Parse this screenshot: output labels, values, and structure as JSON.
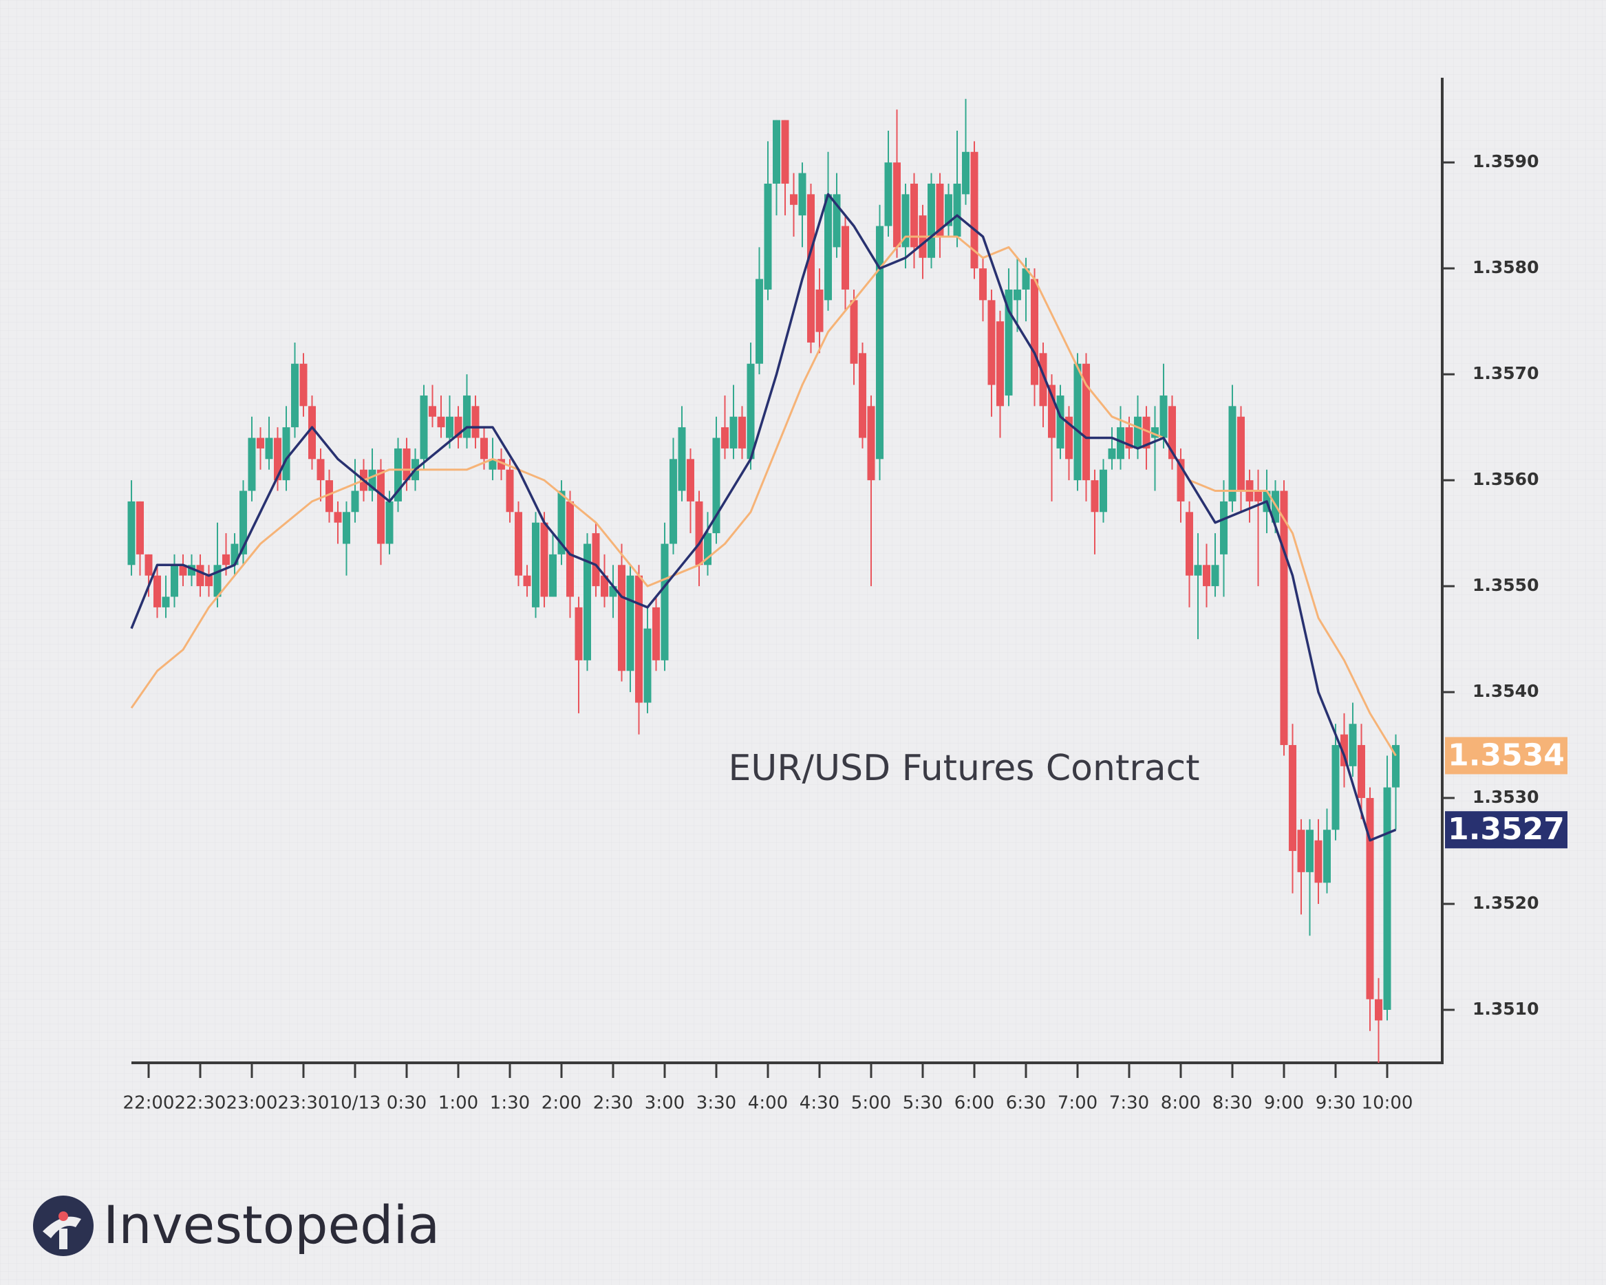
{
  "chart_data": {
    "type": "candlestick",
    "title": "EUR/USD Futures Contract",
    "up_color": "#33a98f",
    "down_color": "#e9545b",
    "x": [
      -10,
      -5,
      0,
      5,
      10,
      15,
      20,
      25,
      30,
      35,
      40,
      45,
      50,
      55,
      60,
      65,
      70,
      75,
      80,
      85,
      90,
      95,
      100,
      105,
      110,
      115,
      120,
      125,
      130,
      135,
      140,
      145,
      150,
      155,
      160,
      165,
      170,
      175,
      180,
      185,
      190,
      195,
      200,
      205,
      210,
      215,
      220,
      225,
      230,
      235,
      240,
      245,
      250,
      255,
      260,
      265,
      270,
      275,
      280,
      285,
      290,
      295,
      300,
      305,
      310,
      315,
      320,
      325,
      330,
      335,
      340,
      345,
      350,
      355,
      360,
      365,
      370,
      375,
      380,
      385,
      390,
      395,
      400,
      405,
      410,
      415,
      420,
      425,
      430,
      435,
      440,
      445,
      450,
      455,
      460,
      465,
      470,
      475,
      480,
      485,
      490,
      495,
      500,
      505,
      510,
      515,
      520,
      525,
      530,
      535,
      540,
      545,
      550,
      555,
      560,
      565,
      570,
      575,
      580,
      585,
      590,
      595,
      600,
      605,
      610,
      615,
      620,
      625,
      630,
      635,
      640,
      645,
      650,
      655,
      660,
      665,
      670,
      675,
      680,
      685,
      690,
      695,
      700,
      705,
      710,
      715,
      720,
      725
    ],
    "open": [
      1.3552,
      1.3558,
      1.3553,
      1.3551,
      1.3548,
      1.3549,
      1.3552,
      1.3551,
      1.3552,
      1.3551,
      1.3549,
      1.3553,
      1.3552,
      1.3553,
      1.3559,
      1.3564,
      1.3562,
      1.3564,
      1.356,
      1.3565,
      1.3571,
      1.3567,
      1.3562,
      1.356,
      1.3557,
      1.3554,
      1.3557,
      1.3561,
      1.3559,
      1.3561,
      1.3554,
      1.3558,
      1.3563,
      1.356,
      1.3562,
      1.3567,
      1.3566,
      1.3564,
      1.3566,
      1.3564,
      1.3567,
      1.3564,
      1.3561,
      1.3562,
      1.3561,
      1.3557,
      1.3551,
      1.3548,
      1.3556,
      1.3549,
      1.3553,
      1.3558,
      1.3548,
      1.3543,
      1.3555,
      1.3551,
      1.3549,
      1.3552,
      1.3542,
      1.3551,
      1.3539,
      1.3548,
      1.3543,
      1.3554,
      1.3559,
      1.3562,
      1.3558,
      1.3552,
      1.3555,
      1.3565,
      1.3563,
      1.3566,
      1.3562,
      1.3571,
      1.3578,
      1.3588,
      1.3594,
      1.3587,
      1.3585,
      1.3587,
      1.3578,
      1.3577,
      1.3582,
      1.3584,
      1.3577,
      1.3572,
      1.3567,
      1.3562,
      1.3584,
      1.359,
      1.3582,
      1.3588,
      1.3585,
      1.3581,
      1.3588,
      1.3584,
      1.3583,
      1.3587,
      1.3591,
      1.358,
      1.3577,
      1.3575,
      1.3568,
      1.3577,
      1.3578,
      1.3579,
      1.3572,
      1.3569,
      1.3563,
      1.3566,
      1.356,
      1.3571,
      1.356,
      1.3557,
      1.3562,
      1.3562,
      1.3565,
      1.3563,
      1.3566,
      1.3564,
      1.3564,
      1.3567,
      1.3562,
      1.3557,
      1.3551,
      1.3552,
      1.355,
      1.3553,
      1.3558,
      1.3566,
      1.356,
      1.3559,
      1.3557,
      1.3556,
      1.3559,
      1.3535,
      1.3527,
      1.3523,
      1.3526,
      1.3522,
      1.3527,
      1.3536,
      1.3533,
      1.3535,
      1.353,
      1.3511,
      1.351,
      1.3531
    ],
    "high": [
      1.356,
      1.3558,
      1.3553,
      1.3552,
      1.3551,
      1.3553,
      1.3553,
      1.3553,
      1.3553,
      1.3552,
      1.3556,
      1.3555,
      1.3555,
      1.356,
      1.3566,
      1.3565,
      1.3566,
      1.3565,
      1.3567,
      1.3573,
      1.3572,
      1.3568,
      1.3563,
      1.3561,
      1.3558,
      1.3558,
      1.3562,
      1.3562,
      1.3563,
      1.3562,
      1.3559,
      1.3564,
      1.3564,
      1.3563,
      1.3569,
      1.3569,
      1.3568,
      1.3568,
      1.3567,
      1.357,
      1.3568,
      1.3565,
      1.3564,
      1.3563,
      1.3562,
      1.3558,
      1.3552,
      1.3557,
      1.3557,
      1.3555,
      1.356,
      1.3559,
      1.3549,
      1.3555,
      1.3556,
      1.3553,
      1.3552,
      1.3554,
      1.3552,
      1.3552,
      1.3548,
      1.3549,
      1.3556,
      1.3564,
      1.3567,
      1.3563,
      1.3559,
      1.3557,
      1.3566,
      1.3568,
      1.3569,
      1.3567,
      1.3573,
      1.3582,
      1.3592,
      1.3594,
      1.3594,
      1.3589,
      1.359,
      1.3588,
      1.358,
      1.3591,
      1.3589,
      1.3585,
      1.3578,
      1.3573,
      1.3568,
      1.3586,
      1.3593,
      1.3595,
      1.3588,
      1.3589,
      1.3586,
      1.3589,
      1.3589,
      1.3588,
      1.3593,
      1.3596,
      1.3592,
      1.3581,
      1.3578,
      1.3576,
      1.358,
      1.3581,
      1.3581,
      1.358,
      1.3573,
      1.357,
      1.3569,
      1.3567,
      1.3572,
      1.3572,
      1.3561,
      1.3562,
      1.3565,
      1.3567,
      1.3566,
      1.3568,
      1.3567,
      1.3567,
      1.3571,
      1.3568,
      1.3563,
      1.3558,
      1.3555,
      1.3554,
      1.3555,
      1.356,
      1.3569,
      1.3567,
      1.3561,
      1.3561,
      1.3561,
      1.356,
      1.356,
      1.3537,
      1.3528,
      1.3528,
      1.3528,
      1.3529,
      1.3537,
      1.3538,
      1.3539,
      1.3537,
      1.3531,
      1.3513,
      1.3534,
      1.3536
    ],
    "low": [
      1.3551,
      1.3551,
      1.3549,
      1.3547,
      1.3547,
      1.3548,
      1.355,
      1.355,
      1.3549,
      1.3549,
      1.3548,
      1.3551,
      1.3551,
      1.3552,
      1.3558,
      1.3561,
      1.3561,
      1.3559,
      1.3559,
      1.3564,
      1.3566,
      1.3561,
      1.3558,
      1.3556,
      1.3554,
      1.3551,
      1.3556,
      1.3558,
      1.3558,
      1.3552,
      1.3553,
      1.3557,
      1.3559,
      1.3559,
      1.3561,
      1.3565,
      1.3564,
      1.3563,
      1.3563,
      1.3563,
      1.3563,
      1.3561,
      1.356,
      1.356,
      1.3556,
      1.355,
      1.3549,
      1.3547,
      1.3548,
      1.3549,
      1.3552,
      1.3547,
      1.3538,
      1.3542,
      1.3549,
      1.3548,
      1.3547,
      1.3541,
      1.354,
      1.3536,
      1.3538,
      1.3542,
      1.3542,
      1.3553,
      1.3558,
      1.3555,
      1.355,
      1.3551,
      1.3554,
      1.3562,
      1.3562,
      1.3562,
      1.3561,
      1.357,
      1.3577,
      1.3585,
      1.3585,
      1.3583,
      1.3582,
      1.3572,
      1.3572,
      1.3576,
      1.3581,
      1.3576,
      1.3569,
      1.3563,
      1.355,
      1.356,
      1.3583,
      1.3581,
      1.358,
      1.358,
      1.3579,
      1.358,
      1.3581,
      1.3583,
      1.3582,
      1.3586,
      1.3579,
      1.3575,
      1.3566,
      1.3564,
      1.3567,
      1.3574,
      1.3575,
      1.3567,
      1.3565,
      1.3558,
      1.3562,
      1.356,
      1.3559,
      1.3558,
      1.3553,
      1.3556,
      1.3561,
      1.3561,
      1.3562,
      1.3562,
      1.3561,
      1.3559,
      1.3563,
      1.3561,
      1.3556,
      1.3548,
      1.3545,
      1.3548,
      1.3549,
      1.3549,
      1.3557,
      1.3557,
      1.3556,
      1.355,
      1.3555,
      1.3555,
      1.3534,
      1.3521,
      1.3519,
      1.3517,
      1.352,
      1.3521,
      1.3526,
      1.3531,
      1.3532,
      1.3528,
      1.3508,
      1.3505,
      1.3509,
      1.3527
    ],
    "close": [
      1.3558,
      1.3553,
      1.3551,
      1.3548,
      1.3549,
      1.3552,
      1.3551,
      1.3552,
      1.355,
      1.355,
      1.3552,
      1.3552,
      1.3554,
      1.3559,
      1.3564,
      1.3563,
      1.3564,
      1.356,
      1.3565,
      1.3571,
      1.3567,
      1.3562,
      1.356,
      1.3557,
      1.3556,
      1.3557,
      1.3559,
      1.3559,
      1.3561,
      1.3554,
      1.3558,
      1.3563,
      1.356,
      1.3562,
      1.3568,
      1.3566,
      1.3565,
      1.3566,
      1.3564,
      1.3568,
      1.3564,
      1.3562,
      1.3562,
      1.3561,
      1.3557,
      1.3551,
      1.355,
      1.3556,
      1.3549,
      1.3553,
      1.3559,
      1.3549,
      1.3543,
      1.3554,
      1.355,
      1.3549,
      1.355,
      1.3542,
      1.3551,
      1.3539,
      1.3546,
      1.3543,
      1.3554,
      1.3562,
      1.3565,
      1.3558,
      1.3552,
      1.3555,
      1.3564,
      1.3563,
      1.3566,
      1.3563,
      1.3571,
      1.3579,
      1.3588,
      1.3594,
      1.3588,
      1.3586,
      1.3589,
      1.3573,
      1.3574,
      1.3587,
      1.3587,
      1.3578,
      1.3571,
      1.3564,
      1.356,
      1.3584,
      1.359,
      1.3582,
      1.3587,
      1.3582,
      1.3581,
      1.3588,
      1.3583,
      1.3587,
      1.3588,
      1.3591,
      1.358,
      1.3577,
      1.3569,
      1.3567,
      1.3578,
      1.3578,
      1.358,
      1.3569,
      1.3567,
      1.3564,
      1.3568,
      1.3562,
      1.3571,
      1.356,
      1.3557,
      1.3561,
      1.3563,
      1.3565,
      1.3563,
      1.3566,
      1.3563,
      1.3565,
      1.3568,
      1.3562,
      1.3558,
      1.3551,
      1.3552,
      1.355,
      1.3552,
      1.3558,
      1.3567,
      1.3559,
      1.3558,
      1.3558,
      1.3559,
      1.3559,
      1.3535,
      1.3525,
      1.3523,
      1.3527,
      1.3522,
      1.3527,
      1.3535,
      1.3533,
      1.3537,
      1.353,
      1.3511,
      1.3509,
      1.3531,
      1.3535
    ],
    "series": [
      {
        "color": "#f6b377",
        "x": [
          -10,
          5,
          20,
          35,
          50,
          65,
          80,
          95,
          110,
          125,
          140,
          155,
          170,
          185,
          200,
          215,
          230,
          245,
          260,
          275,
          290,
          305,
          320,
          335,
          350,
          365,
          380,
          395,
          410,
          425,
          440,
          455,
          470,
          485,
          500,
          515,
          530,
          545,
          560,
          575,
          590,
          605,
          620,
          635,
          650,
          665,
          680,
          695,
          710,
          725
        ],
        "values": [
          1.35385,
          1.3542,
          1.3544,
          1.3548,
          1.3551,
          1.3554,
          1.3556,
          1.3558,
          1.3559,
          1.356,
          1.3561,
          1.3561,
          1.3561,
          1.3561,
          1.3562,
          1.3561,
          1.356,
          1.3558,
          1.3556,
          1.3553,
          1.355,
          1.3551,
          1.3552,
          1.3554,
          1.3557,
          1.3563,
          1.3569,
          1.3574,
          1.3577,
          1.358,
          1.3583,
          1.3583,
          1.3583,
          1.3581,
          1.3582,
          1.3579,
          1.3574,
          1.3569,
          1.3566,
          1.3565,
          1.3564,
          1.356,
          1.3559,
          1.3559,
          1.3559,
          1.3555,
          1.3547,
          1.3543,
          1.3538,
          1.3534
        ]
      },
      {
        "color": "#283170",
        "x": [
          -10,
          5,
          20,
          35,
          50,
          65,
          80,
          95,
          110,
          125,
          140,
          155,
          170,
          185,
          200,
          215,
          230,
          245,
          260,
          275,
          290,
          305,
          320,
          335,
          350,
          365,
          380,
          395,
          410,
          425,
          440,
          455,
          470,
          485,
          500,
          515,
          530,
          545,
          560,
          575,
          590,
          605,
          620,
          635,
          650,
          665,
          680,
          695,
          710,
          725
        ],
        "values": [
          1.3546,
          1.3552,
          1.3552,
          1.3551,
          1.3552,
          1.3557,
          1.3562,
          1.3565,
          1.3562,
          1.356,
          1.3558,
          1.3561,
          1.3563,
          1.3565,
          1.3565,
          1.3561,
          1.3556,
          1.3553,
          1.3552,
          1.3549,
          1.3548,
          1.3551,
          1.3554,
          1.3558,
          1.3562,
          1.357,
          1.3579,
          1.3587,
          1.3584,
          1.358,
          1.3581,
          1.3583,
          1.3585,
          1.3583,
          1.3576,
          1.3572,
          1.3566,
          1.3564,
          1.3564,
          1.3563,
          1.3564,
          1.356,
          1.3556,
          1.3557,
          1.3558,
          1.3551,
          1.354,
          1.3534,
          1.3526,
          1.3527
        ]
      }
    ],
    "xlim": [
      -10,
      752
    ],
    "xticks": [
      {
        "value": 0,
        "label": "22:00"
      },
      {
        "value": 30,
        "label": "22:30"
      },
      {
        "value": 60,
        "label": "23:00"
      },
      {
        "value": 90,
        "label": "23:30"
      },
      {
        "value": 120,
        "label": "10/13"
      },
      {
        "value": 150,
        "label": "0:30"
      },
      {
        "value": 180,
        "label": "1:00"
      },
      {
        "value": 210,
        "label": "1:30"
      },
      {
        "value": 240,
        "label": "2:00"
      },
      {
        "value": 270,
        "label": "2:30"
      },
      {
        "value": 300,
        "label": "3:00"
      },
      {
        "value": 330,
        "label": "3:30"
      },
      {
        "value": 360,
        "label": "4:00"
      },
      {
        "value": 390,
        "label": "4:30"
      },
      {
        "value": 420,
        "label": "5:00"
      },
      {
        "value": 450,
        "label": "5:30"
      },
      {
        "value": 480,
        "label": "6:00"
      },
      {
        "value": 510,
        "label": "6:30"
      },
      {
        "value": 540,
        "label": "7:00"
      },
      {
        "value": 570,
        "label": "7:30"
      },
      {
        "value": 600,
        "label": "8:00"
      },
      {
        "value": 630,
        "label": "8:30"
      },
      {
        "value": 660,
        "label": "9:00"
      },
      {
        "value": 690,
        "label": "9:30"
      },
      {
        "value": 720,
        "label": "10:00"
      }
    ],
    "ylim": [
      1.3505,
      1.3598
    ],
    "yticks": [
      {
        "value": 1.351,
        "label": "1.3510"
      },
      {
        "value": 1.352,
        "label": "1.3520"
      },
      {
        "value": 1.353,
        "label": "1.3530"
      },
      {
        "value": 1.354,
        "label": "1.3540"
      },
      {
        "value": 1.355,
        "label": "1.3550"
      },
      {
        "value": 1.356,
        "label": "1.3560"
      },
      {
        "value": 1.357,
        "label": "1.3570"
      },
      {
        "value": 1.358,
        "label": "1.3580"
      },
      {
        "value": 1.359,
        "label": "1.3590"
      }
    ]
  },
  "brand": "Investopedia"
}
